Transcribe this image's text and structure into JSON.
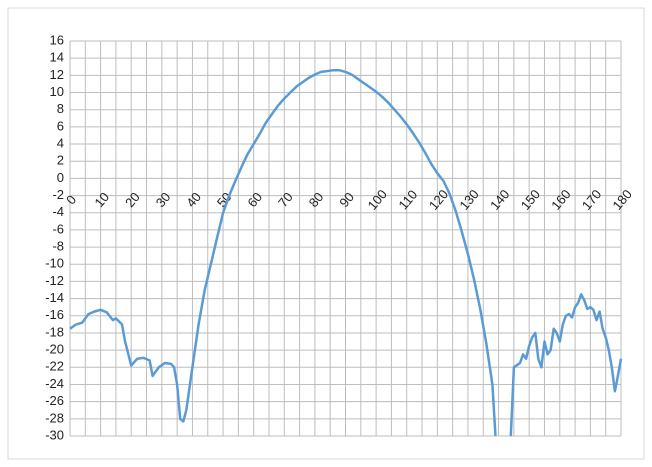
{
  "chart_data": {
    "type": "line",
    "x": [
      0,
      2,
      4,
      6,
      8,
      10,
      12,
      14,
      15,
      17,
      18,
      20,
      22,
      24,
      26,
      27,
      29,
      31,
      33,
      34,
      35,
      36,
      37,
      38,
      40,
      42,
      44,
      46,
      48,
      50,
      52,
      54,
      56,
      58,
      60,
      62,
      64,
      66,
      68,
      70,
      72,
      74,
      76,
      78,
      80,
      82,
      84,
      86,
      88,
      90,
      92,
      94,
      96,
      98,
      100,
      102,
      104,
      106,
      108,
      110,
      112,
      114,
      116,
      118,
      120,
      122,
      124,
      126,
      128,
      130,
      132,
      134,
      136,
      138,
      139,
      141,
      144,
      145,
      147,
      148,
      149,
      150,
      151,
      152,
      153,
      154,
      155,
      156,
      157,
      158,
      159,
      160,
      161,
      162,
      163,
      164,
      165,
      166,
      167,
      168,
      169,
      170,
      171,
      172,
      173,
      174,
      175,
      176,
      177,
      178,
      179,
      180
    ],
    "series": [
      {
        "color": "#5b9bd5",
        "values": [
          -17.5,
          -17,
          -16.8,
          -15.8,
          -15.5,
          -15.3,
          -15.6,
          -16.5,
          -16.3,
          -17,
          -19,
          -21.8,
          -21,
          -20.9,
          -21.2,
          -23,
          -22,
          -21.5,
          -21.6,
          -22,
          -24,
          -28,
          -28.3,
          -27,
          -22,
          -17,
          -13,
          -10,
          -7,
          -4,
          -2,
          -0.3,
          1.3,
          2.8,
          4,
          5.2,
          6.5,
          7.5,
          8.5,
          9.3,
          10,
          10.7,
          11.2,
          11.7,
          12.1,
          12.4,
          12.5,
          12.6,
          12.6,
          12.4,
          12.1,
          11.6,
          11.1,
          10.6,
          10.1,
          9.5,
          8.8,
          8,
          7.2,
          6.3,
          5.3,
          4.2,
          3,
          1.7,
          0.6,
          -0.3,
          -1.8,
          -3.8,
          -6.2,
          -8.8,
          -11.8,
          -15.2,
          -19.2,
          -24,
          -30,
          null,
          -30,
          -22,
          -21.5,
          -20.5,
          -21,
          -19.5,
          -18.5,
          -18,
          -21,
          -22,
          -19,
          -20.5,
          -20,
          -17.5,
          -18,
          -19,
          -17,
          -16,
          -15.8,
          -16.2,
          -15,
          -14.5,
          -13.5,
          -14.2,
          -15.2,
          -15,
          -15.3,
          -16.5,
          -15.5,
          -17.5,
          -18.5,
          -20,
          -22,
          -24.8,
          -23,
          -21
        ]
      }
    ],
    "xlim": [
      0,
      180
    ],
    "xticks": [
      0,
      10,
      20,
      30,
      40,
      50,
      60,
      70,
      80,
      90,
      100,
      110,
      120,
      130,
      140,
      150,
      160,
      170,
      180
    ],
    "x_minor_ticks": [
      5,
      15,
      25,
      35,
      45,
      55,
      65,
      75,
      85,
      95,
      105,
      115,
      125,
      135,
      145,
      155,
      165,
      175
    ],
    "ylim": [
      -30,
      16
    ],
    "yticks": [
      -30,
      -28,
      -26,
      -24,
      -22,
      -20,
      -18,
      -16,
      -14,
      -12,
      -10,
      -8,
      -6,
      -4,
      -2,
      0,
      2,
      4,
      6,
      8,
      10,
      12,
      14,
      16
    ],
    "grid": true
  }
}
